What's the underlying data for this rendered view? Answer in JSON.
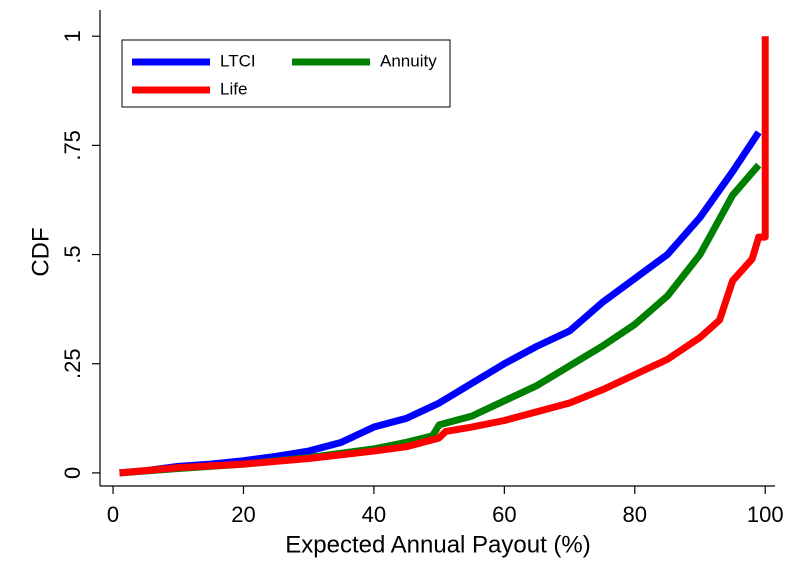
{
  "chart_data": {
    "type": "line",
    "xlabel": "Expected Annual Payout (%)",
    "ylabel": "CDF",
    "xlim": [
      -2,
      101.5
    ],
    "ylim": [
      -0.03,
      1.06
    ],
    "xticks": [
      0,
      20,
      40,
      60,
      80,
      100
    ],
    "yticks": [
      0,
      {
        "value": 0.25,
        "label": ".25"
      },
      {
        "value": 0.5,
        "label": ".5"
      },
      {
        "value": 0.75,
        "label": ".75"
      },
      1
    ],
    "legend": "top left",
    "series": [
      {
        "name": "LTCI",
        "color": "#0000ff",
        "x": [
          1,
          5,
          10,
          15,
          20,
          25,
          30,
          35,
          40,
          45,
          50,
          55,
          60,
          65,
          70,
          75,
          80,
          85,
          90,
          95,
          99
        ],
        "values": [
          0,
          0.005,
          0.015,
          0.02,
          0.028,
          0.038,
          0.05,
          0.07,
          0.105,
          0.125,
          0.16,
          0.205,
          0.25,
          0.29,
          0.325,
          0.39,
          0.445,
          0.5,
          0.585,
          0.69,
          0.78
        ]
      },
      {
        "name": "Annuity",
        "color": "#008000",
        "x": [
          1,
          10,
          20,
          30,
          40,
          45,
          49,
          50,
          55,
          60,
          65,
          70,
          75,
          80,
          85,
          90,
          95,
          99
        ],
        "values": [
          0,
          0.01,
          0.02,
          0.035,
          0.055,
          0.07,
          0.085,
          0.11,
          0.13,
          0.165,
          0.2,
          0.245,
          0.29,
          0.34,
          0.405,
          0.5,
          0.636,
          0.705
        ]
      },
      {
        "name": "Life",
        "color": "#ff0000",
        "x": [
          1,
          10,
          20,
          30,
          40,
          45,
          50,
          51,
          55,
          60,
          65,
          70,
          75,
          80,
          85,
          90,
          93,
          95,
          98,
          99,
          100,
          100
        ],
        "values": [
          0,
          0.012,
          0.02,
          0.033,
          0.05,
          0.06,
          0.08,
          0.095,
          0.105,
          0.12,
          0.14,
          0.16,
          0.19,
          0.225,
          0.26,
          0.31,
          0.35,
          0.44,
          0.49,
          0.54,
          0.54,
          1
        ]
      }
    ]
  }
}
